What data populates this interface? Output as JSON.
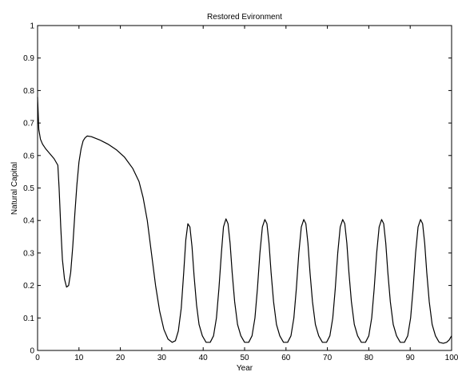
{
  "chart_data": {
    "type": "line",
    "title": "Restored Evironment",
    "xlabel": "Year",
    "ylabel": "Natural Capital",
    "xlim": [
      0,
      100
    ],
    "ylim": [
      0,
      1
    ],
    "x_ticks": [
      0,
      10,
      20,
      30,
      40,
      50,
      60,
      70,
      80,
      90,
      100
    ],
    "y_ticks": [
      0,
      0.1,
      0.2,
      0.3,
      0.4,
      0.5,
      0.6,
      0.7,
      0.8,
      0.9,
      1
    ],
    "x_tick_labels": [
      "0",
      "10",
      "20",
      "30",
      "40",
      "50",
      "60",
      "70",
      "80",
      "90",
      "100"
    ],
    "y_tick_labels": [
      "0",
      "0.1",
      "0.2",
      "0.3",
      "0.4",
      "0.5",
      "0.6",
      "0.7",
      "0.8",
      "0.9",
      "1"
    ],
    "grid": false,
    "legend": "none",
    "series": [
      {
        "color": "#000000",
        "points": [
          [
            0,
            0.78
          ],
          [
            0.3,
            0.68
          ],
          [
            0.7,
            0.65
          ],
          [
            1.2,
            0.635
          ],
          [
            2,
            0.62
          ],
          [
            3,
            0.605
          ],
          [
            4,
            0.59
          ],
          [
            4.9,
            0.57
          ],
          [
            5.2,
            0.5
          ],
          [
            5.6,
            0.38
          ],
          [
            6,
            0.28
          ],
          [
            6.5,
            0.22
          ],
          [
            7,
            0.195
          ],
          [
            7.5,
            0.2
          ],
          [
            8,
            0.24
          ],
          [
            8.5,
            0.32
          ],
          [
            9,
            0.42
          ],
          [
            9.5,
            0.51
          ],
          [
            10,
            0.58
          ],
          [
            10.5,
            0.62
          ],
          [
            11,
            0.645
          ],
          [
            11.5,
            0.655
          ],
          [
            12,
            0.66
          ],
          [
            13,
            0.658
          ],
          [
            15,
            0.648
          ],
          [
            17,
            0.635
          ],
          [
            19,
            0.618
          ],
          [
            21,
            0.595
          ],
          [
            23,
            0.56
          ],
          [
            24.5,
            0.52
          ],
          [
            25.5,
            0.47
          ],
          [
            26.5,
            0.4
          ],
          [
            27.5,
            0.3
          ],
          [
            28.5,
            0.2
          ],
          [
            29.5,
            0.12
          ],
          [
            30.5,
            0.065
          ],
          [
            31.5,
            0.035
          ],
          [
            32.5,
            0.025
          ],
          [
            33.3,
            0.03
          ],
          [
            34,
            0.06
          ],
          [
            34.7,
            0.13
          ],
          [
            35.3,
            0.24
          ],
          [
            35.8,
            0.34
          ],
          [
            36.3,
            0.39
          ],
          [
            36.8,
            0.38
          ],
          [
            37.3,
            0.32
          ],
          [
            37.8,
            0.23
          ],
          [
            38.4,
            0.14
          ],
          [
            39,
            0.08
          ],
          [
            39.8,
            0.045
          ],
          [
            40.7,
            0.025
          ],
          [
            41.7,
            0.025
          ],
          [
            42.5,
            0.045
          ],
          [
            43.2,
            0.1
          ],
          [
            43.8,
            0.19
          ],
          [
            44.4,
            0.3
          ],
          [
            44.9,
            0.38
          ],
          [
            45.5,
            0.405
          ],
          [
            46,
            0.39
          ],
          [
            46.5,
            0.33
          ],
          [
            47,
            0.24
          ],
          [
            47.6,
            0.15
          ],
          [
            48.3,
            0.08
          ],
          [
            49.1,
            0.045
          ],
          [
            50,
            0.025
          ],
          [
            51,
            0.025
          ],
          [
            51.8,
            0.045
          ],
          [
            52.5,
            0.1
          ],
          [
            53.1,
            0.19
          ],
          [
            53.7,
            0.3
          ],
          [
            54.3,
            0.38
          ],
          [
            54.9,
            0.403
          ],
          [
            55.4,
            0.39
          ],
          [
            55.9,
            0.33
          ],
          [
            56.4,
            0.24
          ],
          [
            57,
            0.15
          ],
          [
            57.7,
            0.08
          ],
          [
            58.5,
            0.045
          ],
          [
            59.4,
            0.025
          ],
          [
            60.4,
            0.025
          ],
          [
            61.2,
            0.045
          ],
          [
            61.9,
            0.1
          ],
          [
            62.5,
            0.19
          ],
          [
            63.1,
            0.3
          ],
          [
            63.7,
            0.38
          ],
          [
            64.3,
            0.403
          ],
          [
            64.8,
            0.39
          ],
          [
            65.3,
            0.33
          ],
          [
            65.8,
            0.24
          ],
          [
            66.4,
            0.15
          ],
          [
            67.1,
            0.08
          ],
          [
            67.9,
            0.045
          ],
          [
            68.8,
            0.025
          ],
          [
            69.8,
            0.025
          ],
          [
            70.6,
            0.045
          ],
          [
            71.3,
            0.1
          ],
          [
            71.9,
            0.19
          ],
          [
            72.5,
            0.3
          ],
          [
            73.1,
            0.38
          ],
          [
            73.7,
            0.403
          ],
          [
            74.2,
            0.39
          ],
          [
            74.7,
            0.33
          ],
          [
            75.2,
            0.24
          ],
          [
            75.8,
            0.15
          ],
          [
            76.5,
            0.08
          ],
          [
            77.3,
            0.045
          ],
          [
            78.2,
            0.025
          ],
          [
            79.2,
            0.025
          ],
          [
            80,
            0.045
          ],
          [
            80.7,
            0.1
          ],
          [
            81.3,
            0.19
          ],
          [
            81.9,
            0.3
          ],
          [
            82.5,
            0.38
          ],
          [
            83.1,
            0.403
          ],
          [
            83.6,
            0.39
          ],
          [
            84.1,
            0.33
          ],
          [
            84.6,
            0.24
          ],
          [
            85.2,
            0.15
          ],
          [
            85.9,
            0.08
          ],
          [
            86.7,
            0.045
          ],
          [
            87.6,
            0.025
          ],
          [
            88.6,
            0.025
          ],
          [
            89.4,
            0.045
          ],
          [
            90.1,
            0.1
          ],
          [
            90.7,
            0.19
          ],
          [
            91.3,
            0.3
          ],
          [
            91.9,
            0.38
          ],
          [
            92.5,
            0.403
          ],
          [
            93,
            0.39
          ],
          [
            93.5,
            0.33
          ],
          [
            94,
            0.24
          ],
          [
            94.6,
            0.15
          ],
          [
            95.3,
            0.08
          ],
          [
            96.1,
            0.045
          ],
          [
            97,
            0.025
          ],
          [
            98,
            0.022
          ],
          [
            98.8,
            0.025
          ],
          [
            99.4,
            0.032
          ],
          [
            100,
            0.045
          ]
        ]
      }
    ]
  }
}
